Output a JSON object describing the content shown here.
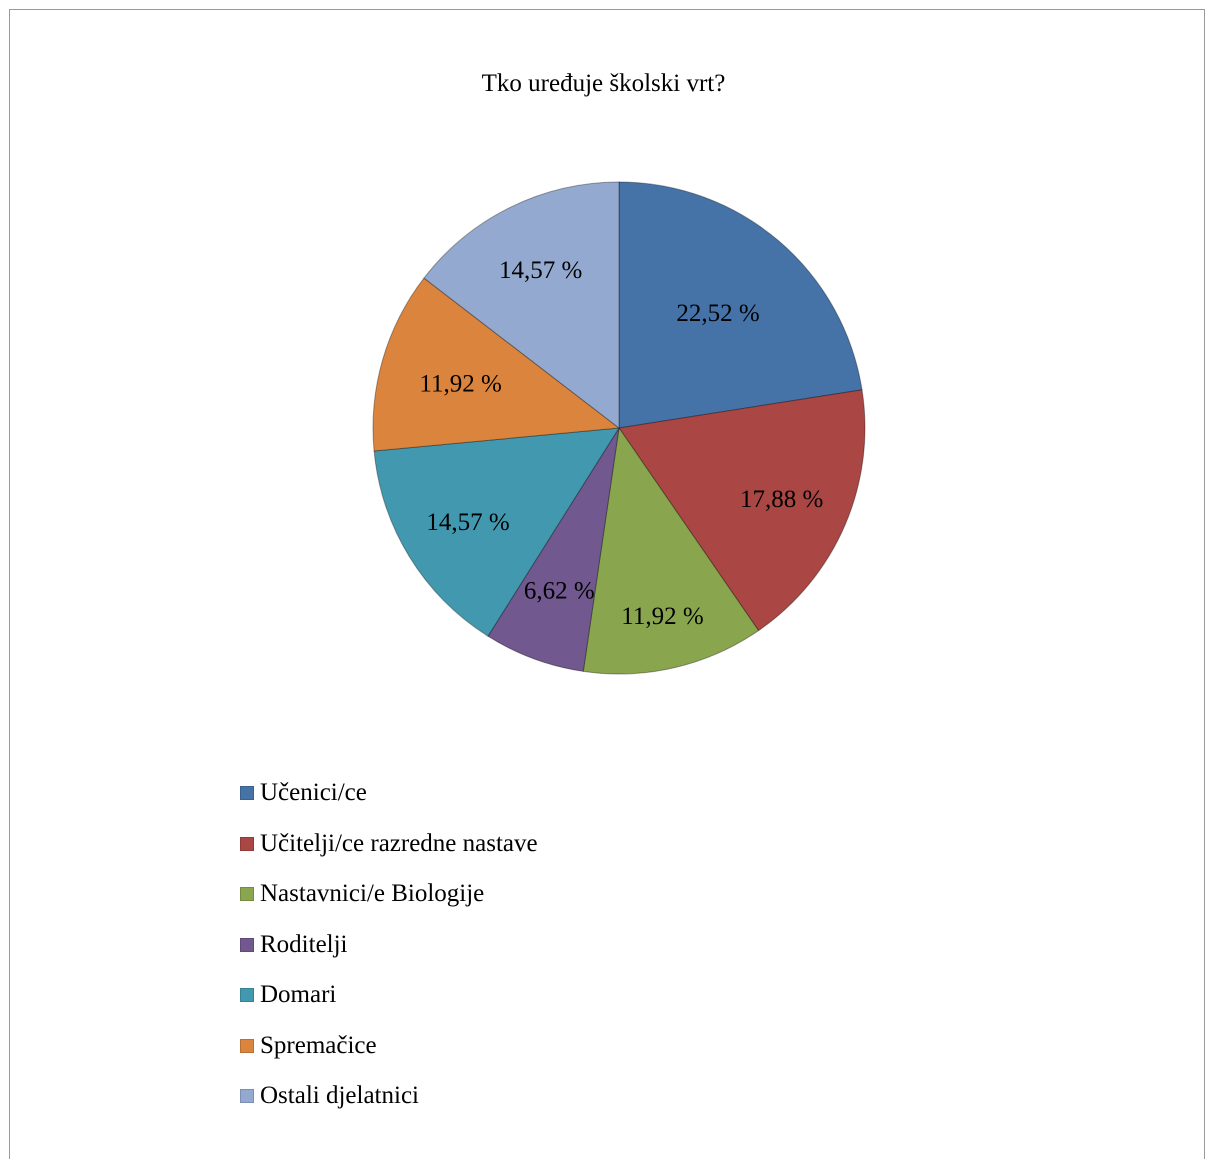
{
  "chart_data": {
    "type": "pie",
    "title": "Tko uređuje školski vrt?",
    "categories": [
      "Učenici/ce",
      "Učitelji/ce razredne nastave",
      "Nastavnici/e Biologije",
      "Roditelji",
      "Domari",
      "Spremačice",
      "Ostali djelatnici"
    ],
    "values": [
      22.52,
      17.88,
      11.92,
      6.62,
      14.57,
      11.92,
      14.57
    ],
    "data_labels": [
      "22,52 %",
      "17,88 %",
      "11,92 %",
      "6,62 %",
      "14,57 %",
      "11,92 %",
      "14,57 %"
    ],
    "colors": [
      "#4572A7",
      "#AA4643",
      "#89A54E",
      "#71588F",
      "#4198AF",
      "#DB843D",
      "#93A9CF"
    ],
    "legend_position": "bottom-left",
    "start_angle": "top",
    "direction": "clockwise"
  }
}
